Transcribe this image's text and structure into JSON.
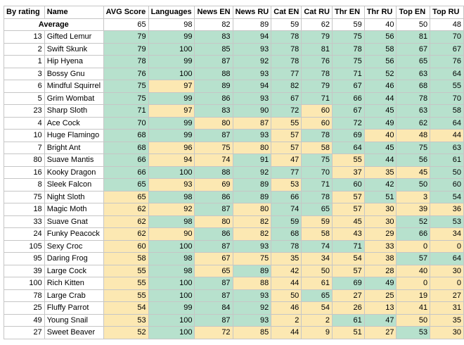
{
  "headers": [
    "By rating",
    "Name",
    "AVG Score",
    "Languages",
    "News EN",
    "News RU",
    "Cat EN",
    "Cat RU",
    "Thr EN",
    "Thr RU",
    "Top EN",
    "Top RU"
  ],
  "average": {
    "label": "Average",
    "values": [
      "65",
      "98",
      "82",
      "89",
      "59",
      "62",
      "59",
      "40",
      "50",
      "48"
    ]
  },
  "rows": [
    {
      "rank": "13",
      "name": "Gifted Lemur",
      "values": [
        "79",
        "99",
        "83",
        "94",
        "78",
        "79",
        "75",
        "56",
        "81",
        "70"
      ],
      "colors": [
        "g",
        "g",
        "g",
        "g",
        "g",
        "g",
        "g",
        "g",
        "g",
        "g"
      ]
    },
    {
      "rank": "2",
      "name": "Swift Skunk",
      "values": [
        "79",
        "100",
        "85",
        "93",
        "78",
        "81",
        "78",
        "58",
        "67",
        "67"
      ],
      "colors": [
        "g",
        "g",
        "g",
        "g",
        "g",
        "g",
        "g",
        "g",
        "g",
        "g"
      ]
    },
    {
      "rank": "1",
      "name": "Hip Hyena",
      "values": [
        "78",
        "99",
        "87",
        "92",
        "78",
        "76",
        "75",
        "56",
        "65",
        "76"
      ],
      "colors": [
        "g",
        "g",
        "g",
        "g",
        "g",
        "g",
        "g",
        "g",
        "g",
        "g"
      ]
    },
    {
      "rank": "3",
      "name": "Bossy Gnu",
      "values": [
        "76",
        "100",
        "88",
        "93",
        "77",
        "78",
        "71",
        "52",
        "63",
        "64"
      ],
      "colors": [
        "g",
        "g",
        "g",
        "g",
        "g",
        "g",
        "g",
        "g",
        "g",
        "g"
      ]
    },
    {
      "rank": "6",
      "name": "Mindful Squirrel",
      "values": [
        "75",
        "97",
        "89",
        "94",
        "82",
        "79",
        "67",
        "46",
        "68",
        "55"
      ],
      "colors": [
        "g",
        "y",
        "g",
        "g",
        "g",
        "g",
        "g",
        "g",
        "g",
        "g"
      ]
    },
    {
      "rank": "5",
      "name": "Grim Wombat",
      "values": [
        "75",
        "99",
        "86",
        "93",
        "67",
        "71",
        "66",
        "44",
        "78",
        "70"
      ],
      "colors": [
        "g",
        "g",
        "g",
        "g",
        "g",
        "g",
        "g",
        "g",
        "g",
        "g"
      ]
    },
    {
      "rank": "23",
      "name": "Sharp Sloth",
      "values": [
        "71",
        "97",
        "83",
        "90",
        "72",
        "60",
        "67",
        "45",
        "63",
        "58"
      ],
      "colors": [
        "g",
        "y",
        "g",
        "g",
        "g",
        "y",
        "g",
        "g",
        "g",
        "g"
      ]
    },
    {
      "rank": "4",
      "name": "Ace Cock",
      "values": [
        "70",
        "99",
        "80",
        "87",
        "55",
        "60",
        "72",
        "49",
        "62",
        "64"
      ],
      "colors": [
        "g",
        "g",
        "y",
        "y",
        "y",
        "y",
        "g",
        "g",
        "g",
        "g"
      ]
    },
    {
      "rank": "10",
      "name": "Huge Flamingo",
      "values": [
        "68",
        "99",
        "87",
        "93",
        "57",
        "78",
        "69",
        "40",
        "48",
        "44"
      ],
      "colors": [
        "g",
        "g",
        "g",
        "g",
        "y",
        "g",
        "g",
        "y",
        "y",
        "y"
      ]
    },
    {
      "rank": "7",
      "name": "Bright Ant",
      "values": [
        "68",
        "96",
        "75",
        "80",
        "57",
        "58",
        "64",
        "45",
        "75",
        "63"
      ],
      "colors": [
        "g",
        "y",
        "y",
        "y",
        "y",
        "y",
        "g",
        "g",
        "g",
        "g"
      ]
    },
    {
      "rank": "80",
      "name": "Suave Mantis",
      "values": [
        "66",
        "94",
        "74",
        "91",
        "47",
        "75",
        "55",
        "44",
        "56",
        "61"
      ],
      "colors": [
        "g",
        "y",
        "y",
        "g",
        "y",
        "g",
        "y",
        "g",
        "g",
        "g"
      ]
    },
    {
      "rank": "16",
      "name": "Kooky Dragon",
      "values": [
        "66",
        "100",
        "88",
        "92",
        "77",
        "70",
        "37",
        "35",
        "45",
        "50"
      ],
      "colors": [
        "g",
        "g",
        "g",
        "g",
        "g",
        "g",
        "y",
        "y",
        "y",
        "g"
      ]
    },
    {
      "rank": "8",
      "name": "Sleek Falcon",
      "values": [
        "65",
        "93",
        "69",
        "89",
        "53",
        "71",
        "60",
        "42",
        "50",
        "60"
      ],
      "colors": [
        "g",
        "y",
        "y",
        "g",
        "y",
        "g",
        "g",
        "g",
        "g",
        "g"
      ]
    },
    {
      "rank": "75",
      "name": "Night Sloth",
      "values": [
        "65",
        "98",
        "86",
        "89",
        "66",
        "78",
        "57",
        "51",
        "3",
        "54"
      ],
      "colors": [
        "y",
        "g",
        "g",
        "g",
        "g",
        "g",
        "y",
        "g",
        "y",
        "g"
      ]
    },
    {
      "rank": "18",
      "name": "Magic Moth",
      "values": [
        "62",
        "92",
        "87",
        "80",
        "74",
        "65",
        "57",
        "30",
        "39",
        "36"
      ],
      "colors": [
        "y",
        "y",
        "g",
        "y",
        "g",
        "g",
        "y",
        "y",
        "y",
        "y"
      ]
    },
    {
      "rank": "33",
      "name": "Suave Gnat",
      "values": [
        "62",
        "98",
        "80",
        "82",
        "59",
        "59",
        "45",
        "30",
        "52",
        "53"
      ],
      "colors": [
        "y",
        "g",
        "y",
        "y",
        "g",
        "y",
        "y",
        "y",
        "g",
        "g"
      ]
    },
    {
      "rank": "24",
      "name": "Funky Peacock",
      "values": [
        "62",
        "90",
        "86",
        "82",
        "68",
        "58",
        "43",
        "29",
        "66",
        "34"
      ],
      "colors": [
        "y",
        "y",
        "g",
        "y",
        "g",
        "y",
        "y",
        "y",
        "g",
        "y"
      ]
    },
    {
      "rank": "105",
      "name": "Sexy Croc",
      "values": [
        "60",
        "100",
        "87",
        "93",
        "78",
        "74",
        "71",
        "33",
        "0",
        "0"
      ],
      "colors": [
        "y",
        "g",
        "g",
        "g",
        "g",
        "g",
        "g",
        "y",
        "y",
        "y"
      ]
    },
    {
      "rank": "95",
      "name": "Daring Frog",
      "values": [
        "58",
        "98",
        "67",
        "75",
        "35",
        "34",
        "54",
        "38",
        "57",
        "64"
      ],
      "colors": [
        "y",
        "g",
        "y",
        "y",
        "y",
        "y",
        "y",
        "y",
        "g",
        "g"
      ]
    },
    {
      "rank": "39",
      "name": "Large Cock",
      "values": [
        "55",
        "98",
        "65",
        "89",
        "42",
        "50",
        "57",
        "28",
        "40",
        "30"
      ],
      "colors": [
        "y",
        "g",
        "y",
        "g",
        "y",
        "y",
        "y",
        "y",
        "y",
        "y"
      ]
    },
    {
      "rank": "100",
      "name": "Rich Kitten",
      "values": [
        "55",
        "100",
        "87",
        "88",
        "44",
        "61",
        "69",
        "49",
        "0",
        "0"
      ],
      "colors": [
        "y",
        "g",
        "g",
        "y",
        "y",
        "y",
        "g",
        "g",
        "y",
        "y"
      ]
    },
    {
      "rank": "78",
      "name": "Large Crab",
      "values": [
        "55",
        "100",
        "87",
        "93",
        "50",
        "65",
        "27",
        "25",
        "19",
        "27"
      ],
      "colors": [
        "y",
        "g",
        "g",
        "g",
        "y",
        "g",
        "y",
        "y",
        "y",
        "y"
      ]
    },
    {
      "rank": "25",
      "name": "Fluffy Parrot",
      "values": [
        "54",
        "99",
        "84",
        "92",
        "46",
        "54",
        "26",
        "13",
        "41",
        "31"
      ],
      "colors": [
        "y",
        "g",
        "g",
        "g",
        "y",
        "y",
        "y",
        "y",
        "y",
        "y"
      ]
    },
    {
      "rank": "49",
      "name": "Young Snail",
      "values": [
        "53",
        "100",
        "87",
        "93",
        "2",
        "2",
        "61",
        "47",
        "50",
        "35"
      ],
      "colors": [
        "y",
        "g",
        "g",
        "g",
        "y",
        "y",
        "g",
        "g",
        "y",
        "y"
      ]
    },
    {
      "rank": "27",
      "name": "Sweet Beaver",
      "values": [
        "52",
        "100",
        "72",
        "85",
        "44",
        "9",
        "51",
        "27",
        "53",
        "30"
      ],
      "colors": [
        "y",
        "g",
        "y",
        "y",
        "y",
        "y",
        "y",
        "y",
        "g",
        "y"
      ]
    }
  ],
  "colors": {
    "above_avg": "#b7e1cd",
    "below_avg": "#fce8b2",
    "grid": "#c6c6c6"
  }
}
